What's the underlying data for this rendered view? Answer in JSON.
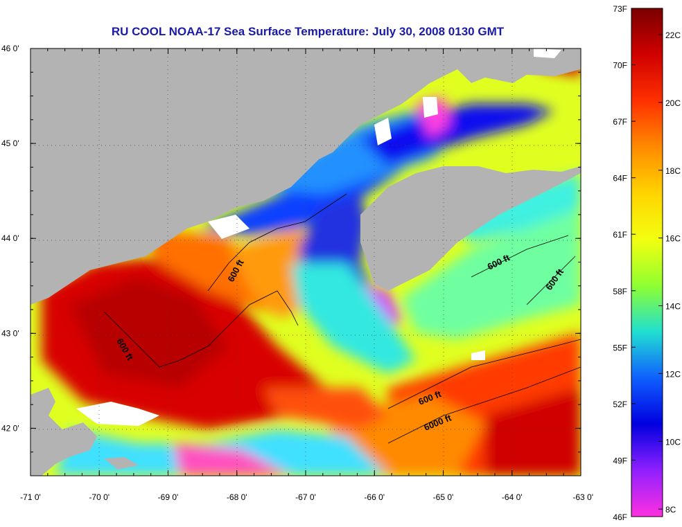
{
  "title": "RU COOL  NOAA-17  Sea Surface Temperature:  July 30, 2008 0130 GMT",
  "axes": {
    "lat_ticks": [
      "46 0'",
      "45 0'",
      "44 0'",
      "43 0'",
      "42 0'"
    ],
    "lon_ticks": [
      "-71 0'",
      "-70 0'",
      "-69 0'",
      "-68 0'",
      "-67 0'",
      "-66 0'",
      "-65 0'",
      "-64 0'",
      "-63 0'"
    ],
    "lat_range": [
      41.5,
      46.0
    ],
    "lon_range": [
      -71.0,
      -63.0
    ],
    "grid": "dotted"
  },
  "contours": [
    {
      "label": "600 ft"
    },
    {
      "label": "600 ft"
    },
    {
      "label": "600 ft"
    },
    {
      "label": "600 ft"
    },
    {
      "label": "600 ft"
    },
    {
      "label": "6000 ft"
    }
  ],
  "colorbar": {
    "f_labels": [
      "73F",
      "70F",
      "67F",
      "64F",
      "61F",
      "58F",
      "55F",
      "52F",
      "49F",
      "46F"
    ],
    "c_labels": [
      "22C",
      "20C",
      "18C",
      "16C",
      "14C",
      "12C",
      "10C",
      "8C"
    ],
    "colors": [
      "#7a0000",
      "#d00000",
      "#ff3000",
      "#ff8a00",
      "#ffd400",
      "#f2ff10",
      "#90ff30",
      "#20e0d0",
      "#1060ff",
      "#0000e0",
      "#9020ff",
      "#ff30e0"
    ]
  },
  "land_color": "#b3b3b3",
  "no_data_color": "#ffffff"
}
